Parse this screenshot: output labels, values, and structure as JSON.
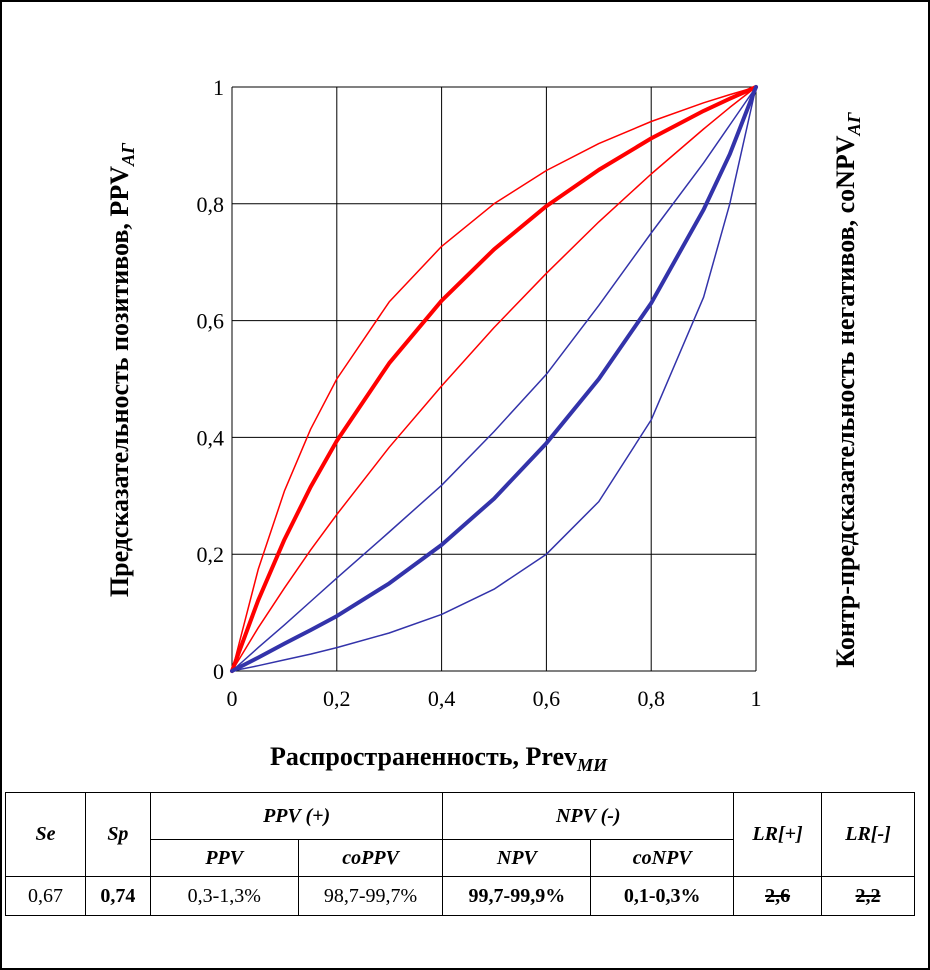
{
  "chart_data": {
    "type": "line",
    "xlabel": "Распространенность,  Prev",
    "xlabel_sub": "МИ",
    "ylabel_left": "Предсказательность  позитивов,  PPV",
    "ylabel_left_sub": "АГ",
    "ylabel_right": "Контр-предсказательность  негативов,  coNPV",
    "ylabel_right_sub": "АГ",
    "xlim": [
      0,
      1
    ],
    "ylim": [
      0,
      1
    ],
    "x_ticks": [
      "0",
      "0,2",
      "0,4",
      "0,6",
      "0,8",
      "1"
    ],
    "y_ticks": [
      "0",
      "0,2",
      "0,4",
      "0,6",
      "0,8",
      "1"
    ],
    "grid": true,
    "x": [
      0,
      0.05,
      0.1,
      0.15,
      0.2,
      0.3,
      0.4,
      0.5,
      0.6,
      0.7,
      0.8,
      0.9,
      0.95,
      1
    ],
    "series": [
      {
        "color": "#ff0000",
        "width": 1.5,
        "values": [
          0,
          0.174,
          0.308,
          0.414,
          0.5,
          0.632,
          0.727,
          0.8,
          0.857,
          0.903,
          0.941,
          0.973,
          0.987,
          1
        ]
      },
      {
        "color": "#ff0000",
        "width": 4,
        "values": [
          0,
          0.121,
          0.225,
          0.315,
          0.394,
          0.527,
          0.634,
          0.722,
          0.796,
          0.858,
          0.912,
          0.959,
          0.98,
          1
        ]
      },
      {
        "color": "#ff0000",
        "width": 1.5,
        "values": [
          0,
          0.074,
          0.142,
          0.207,
          0.268,
          0.383,
          0.488,
          0.588,
          0.681,
          0.769,
          0.851,
          0.928,
          0.965,
          1
        ]
      },
      {
        "color": "#3333aa",
        "width": 1.5,
        "values": [
          0,
          0.04,
          0.079,
          0.119,
          0.159,
          0.238,
          0.318,
          0.41,
          0.508,
          0.626,
          0.75,
          0.87,
          0.935,
          1
        ]
      },
      {
        "color": "#3333aa",
        "width": 4,
        "values": [
          0,
          0.023,
          0.047,
          0.07,
          0.094,
          0.15,
          0.216,
          0.295,
          0.39,
          0.5,
          0.63,
          0.79,
          0.885,
          1
        ]
      },
      {
        "color": "#3333aa",
        "width": 1.5,
        "values": [
          0,
          0.009,
          0.019,
          0.029,
          0.04,
          0.065,
          0.097,
          0.14,
          0.2,
          0.29,
          0.43,
          0.64,
          0.8,
          1
        ]
      }
    ]
  },
  "table": {
    "se": "Se",
    "sp": "Sp",
    "ppv_group": "PPV (+)",
    "npv_group": "NPV (-)",
    "lr_pos": "LR[+]",
    "lr_neg": "LR[-]",
    "ppv": "PPV",
    "coppv": "coPPV",
    "npv": "NPV",
    "conpv": "coNPV",
    "row": {
      "se": "0,67",
      "sp": "0,74",
      "ppv": "0,3-1,3%",
      "coppv": "98,7-99,7%",
      "npv": "99,7-99,9%",
      "conpv": "0,1-0,3%",
      "lr_pos": "2,6",
      "lr_neg": "2,2"
    }
  }
}
